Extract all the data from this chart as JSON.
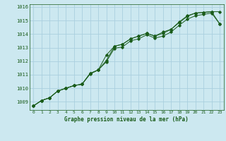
{
  "title": "Graphe pression niveau de la mer (hPa)",
  "bg_color": "#cce8f0",
  "grid_color": "#aacfdf",
  "line_color": "#1a5c1a",
  "xlim": [
    -0.5,
    23.5
  ],
  "ylim": [
    1008.4,
    1016.2
  ],
  "yticks": [
    1009,
    1010,
    1011,
    1012,
    1013,
    1014,
    1015,
    1016
  ],
  "xticks": [
    0,
    1,
    2,
    3,
    4,
    5,
    6,
    7,
    8,
    9,
    10,
    11,
    12,
    13,
    14,
    15,
    16,
    17,
    18,
    19,
    20,
    21,
    22,
    23
  ],
  "series": [
    [
      1008.7,
      1009.1,
      1009.3,
      1009.8,
      1010.0,
      1010.2,
      1010.3,
      1011.1,
      1011.35,
      1012.45,
      1013.1,
      1013.25,
      1013.65,
      1013.85,
      1014.05,
      1013.85,
      1014.05,
      1014.35,
      1014.85,
      1015.3,
      1015.55,
      1015.6,
      1015.65,
      1015.65
    ],
    [
      1008.7,
      1009.1,
      1009.3,
      1009.8,
      1010.0,
      1010.2,
      1010.3,
      1011.1,
      1011.35,
      1012.05,
      1013.1,
      1013.25,
      1013.65,
      1013.85,
      1014.05,
      1013.85,
      1014.15,
      1014.35,
      1014.9,
      1015.35,
      1015.55,
      1015.6,
      1015.65,
      1014.75
    ],
    [
      1008.7,
      1009.1,
      1009.3,
      1009.8,
      1010.0,
      1010.2,
      1010.3,
      1011.05,
      1011.35,
      1011.95,
      1012.95,
      1013.05,
      1013.5,
      1013.65,
      1013.95,
      1013.7,
      1013.85,
      1014.15,
      1014.65,
      1015.1,
      1015.35,
      1015.45,
      1015.55,
      1014.75
    ]
  ]
}
